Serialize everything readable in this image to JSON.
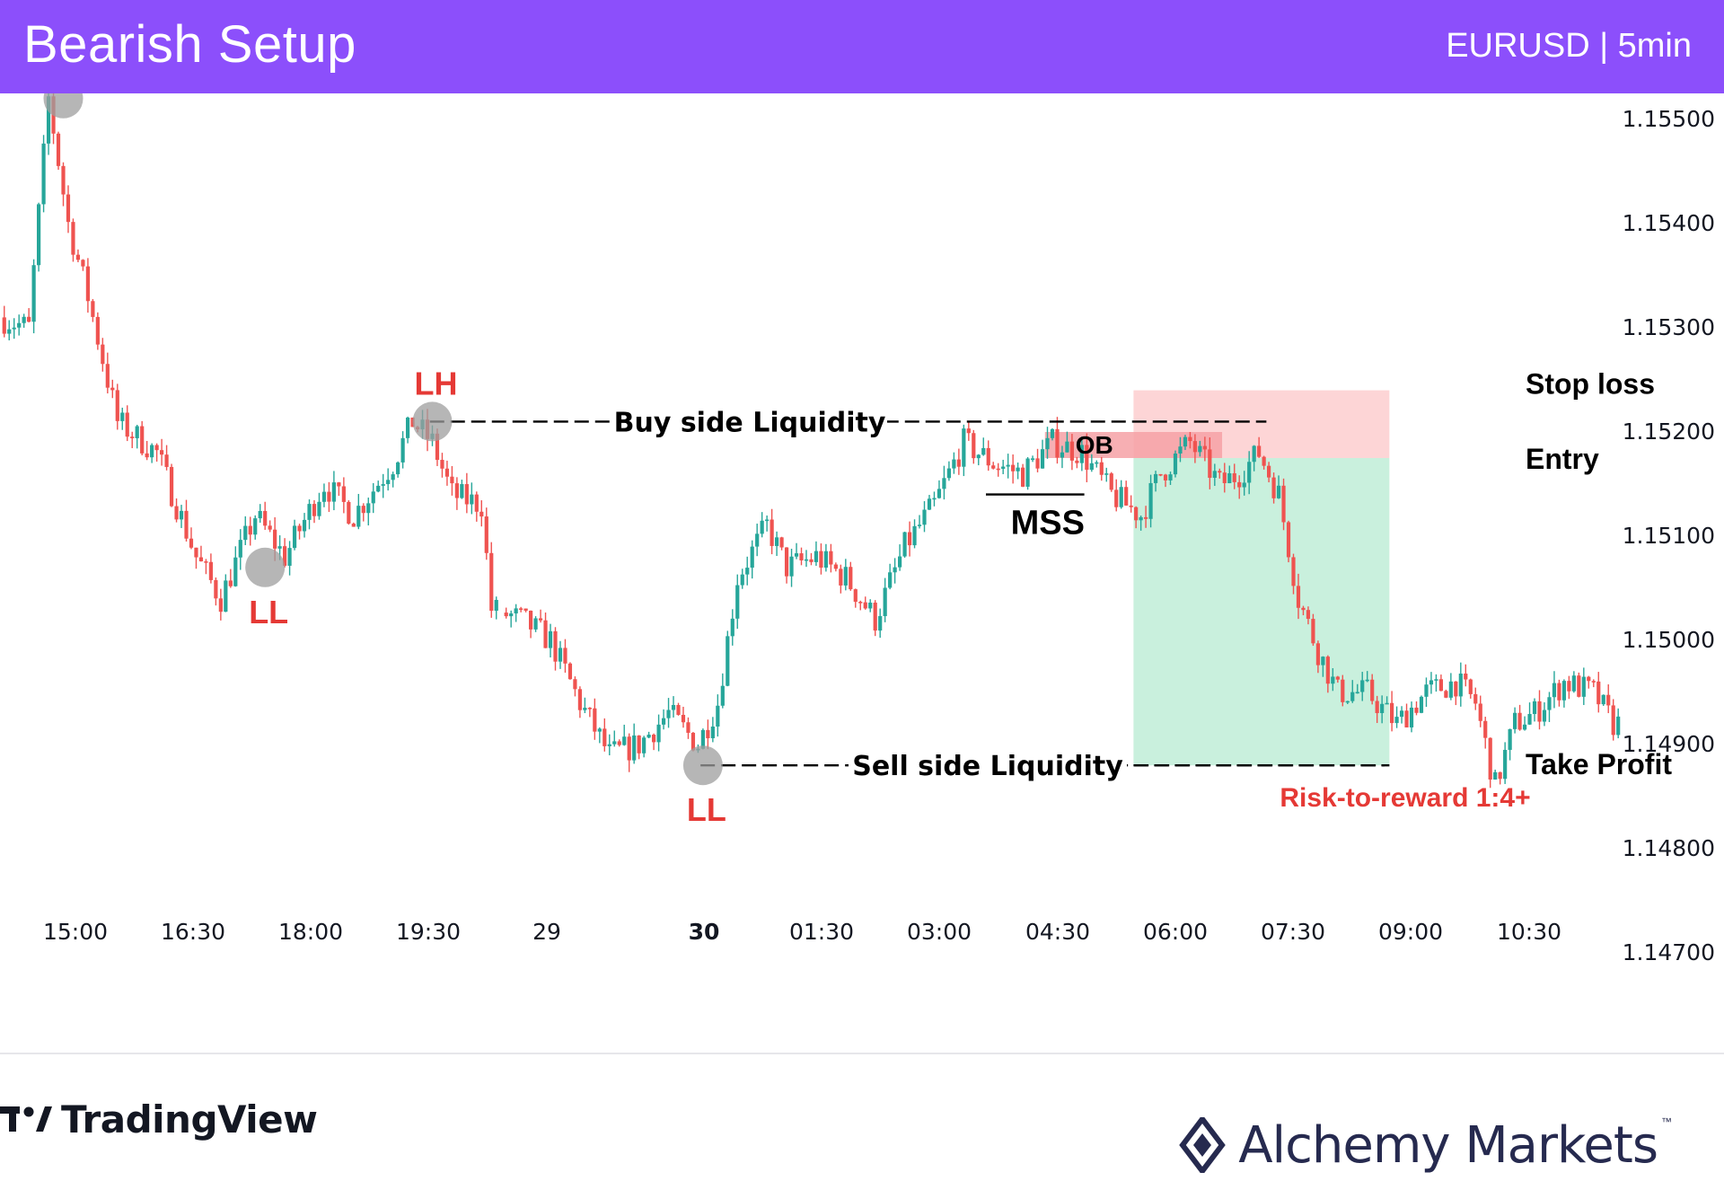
{
  "header": {
    "title": "Bearish Setup",
    "subtitle": "EURUSD | 5min"
  },
  "colors": {
    "header_bg": "#8c4ffb",
    "bull": "#26a69a",
    "bear": "#ef5350",
    "swing_label": "#e53935",
    "stop_zone": "#fdd5d6",
    "profit_zone": "#c9f0dd",
    "order_block": "#f6a1a6",
    "marker": "#9e9e9e"
  },
  "chart_data": {
    "type": "candlestick",
    "title": "Bearish Setup",
    "symbol": "EURUSD",
    "timeframe": "5min",
    "ylim": [
      1.1464,
      1.1558
    ],
    "y_ticks": [
      "1.15500",
      "1.15400",
      "1.15300",
      "1.15200",
      "1.15100",
      "1.15000",
      "1.14900",
      "1.14800",
      "1.14700"
    ],
    "x_ticks": [
      {
        "label": "15:00",
        "bold": false
      },
      {
        "label": "16:30",
        "bold": false
      },
      {
        "label": "18:00",
        "bold": false
      },
      {
        "label": "19:30",
        "bold": false
      },
      {
        "label": "29",
        "bold": false
      },
      {
        "label": "30",
        "bold": true
      },
      {
        "label": "01:30",
        "bold": false
      },
      {
        "label": "03:00",
        "bold": false
      },
      {
        "label": "04:30",
        "bold": false
      },
      {
        "label": "06:00",
        "bold": false
      },
      {
        "label": "07:30",
        "bold": false
      },
      {
        "label": "09:00",
        "bold": false
      },
      {
        "label": "10:30",
        "bold": false
      }
    ],
    "price_path": [
      [
        0,
        1.1531
      ],
      [
        6,
        1.153
      ],
      [
        10,
        1.1552
      ],
      [
        14,
        1.154
      ],
      [
        18,
        1.1533
      ],
      [
        24,
        1.1521
      ],
      [
        32,
        1.1518
      ],
      [
        40,
        1.1508
      ],
      [
        45,
        1.1504
      ],
      [
        52,
        1.1512
      ],
      [
        58,
        1.1508
      ],
      [
        66,
        1.1515
      ],
      [
        72,
        1.1512
      ],
      [
        80,
        1.1517
      ],
      [
        84,
        1.1521
      ],
      [
        88,
        1.1519
      ],
      [
        92,
        1.1514
      ],
      [
        98,
        1.1513
      ],
      [
        100,
        1.1503
      ],
      [
        106,
        1.1502
      ],
      [
        112,
        1.15
      ],
      [
        118,
        1.1494
      ],
      [
        124,
        1.1489
      ],
      [
        130,
        1.149
      ],
      [
        136,
        1.1493
      ],
      [
        142,
        1.149
      ],
      [
        146,
        1.1494
      ],
      [
        150,
        1.1506
      ],
      [
        156,
        1.1511
      ],
      [
        160,
        1.1507
      ],
      [
        166,
        1.1508
      ],
      [
        172,
        1.1506
      ],
      [
        178,
        1.1502
      ],
      [
        184,
        1.1509
      ],
      [
        190,
        1.1513
      ],
      [
        196,
        1.1519
      ],
      [
        202,
        1.1517
      ],
      [
        208,
        1.1516
      ],
      [
        214,
        1.1519
      ],
      [
        220,
        1.1518
      ],
      [
        226,
        1.1514
      ],
      [
        232,
        1.1512
      ],
      [
        236,
        1.1516
      ],
      [
        242,
        1.1519
      ],
      [
        248,
        1.1515
      ],
      [
        252,
        1.1516
      ],
      [
        256,
        1.1518
      ],
      [
        260,
        1.1514
      ],
      [
        264,
        1.1504
      ],
      [
        268,
        1.1499
      ],
      [
        272,
        1.1495
      ],
      [
        278,
        1.1495
      ],
      [
        284,
        1.1492
      ],
      [
        290,
        1.1495
      ],
      [
        296,
        1.1496
      ],
      [
        300,
        1.1494
      ],
      [
        304,
        1.1486
      ],
      [
        308,
        1.1492
      ],
      [
        312,
        1.1493
      ],
      [
        318,
        1.1496
      ],
      [
        324,
        1.1495
      ],
      [
        328,
        1.1492
      ]
    ],
    "gap": {
      "from": 100,
      "to": 102
    },
    "swing_points": [
      {
        "label": "LH",
        "index": 12,
        "price": 1.1552,
        "position": "above"
      },
      {
        "label": "LL",
        "index": 53,
        "price": 1.1507,
        "position": "below"
      },
      {
        "label": "LH",
        "index": 87,
        "price": 1.1521,
        "position": "above"
      },
      {
        "label": "LL",
        "index": 142,
        "price": 1.1488,
        "position": "below"
      }
    ],
    "liquidity_lines": [
      {
        "label": "Buy side Liquidity",
        "price": 1.1521,
        "from_index": 87,
        "to_index": 257
      },
      {
        "label": "Sell side Liquidity",
        "price": 1.1488,
        "from_index": 142,
        "to_index": 281
      }
    ],
    "mss": {
      "label": "MSS",
      "price": 1.1514,
      "from_index": 200,
      "to_index": 220
    },
    "order_block": {
      "label": "OB",
      "top": 1.152,
      "bottom": 1.15175,
      "from_index": 212,
      "to_index": 248
    },
    "trade": {
      "entry": 1.15175,
      "stop_loss": 1.1524,
      "take_profit": 1.1488,
      "from_index": 230,
      "to_index": 282,
      "labels": {
        "stop": "Stop loss",
        "entry": "Entry",
        "take_profit": "Take Profit"
      },
      "risk_reward": "Risk-to-reward 1:4+"
    }
  },
  "footer": {
    "left_brand": "TradingView",
    "right_brand": "Alchemy Markets",
    "right_brand_tm": "™"
  }
}
